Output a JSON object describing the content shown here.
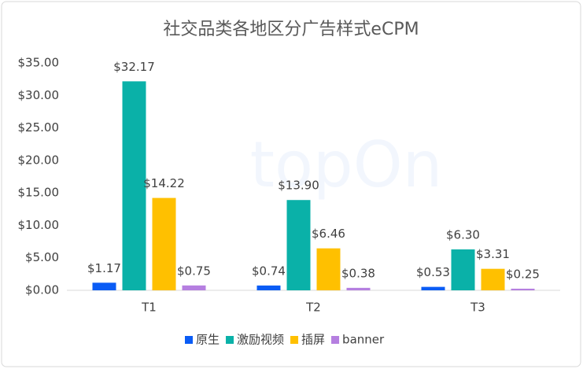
{
  "chart_data": {
    "type": "bar",
    "title": "社交品类各地区分广告样式eCPM",
    "watermark": "topOn",
    "categories": [
      "T1",
      "T2",
      "T3"
    ],
    "series": [
      {
        "name": "原生",
        "color": "#0a5cf5",
        "values": [
          1.17,
          0.74,
          0.53
        ],
        "value_labels": [
          "$1.17",
          "$0.74",
          "$0.53"
        ]
      },
      {
        "name": "激励视频",
        "color": "#0ab1a8",
        "values": [
          32.17,
          13.9,
          6.3
        ],
        "value_labels": [
          "$32.17",
          "$13.90",
          "$6.30"
        ]
      },
      {
        "name": "插屏",
        "color": "#ffc000",
        "values": [
          14.22,
          6.46,
          3.31
        ],
        "value_labels": [
          "$14.22",
          "$6.46",
          "$3.31"
        ]
      },
      {
        "name": "banner",
        "color": "#b57fe0",
        "values": [
          0.75,
          0.38,
          0.25
        ],
        "value_labels": [
          "$0.75",
          "$0.38",
          "$0.25"
        ]
      }
    ],
    "ylim": [
      0,
      35
    ],
    "yticks": [
      {
        "value": 0,
        "label": "$0.00"
      },
      {
        "value": 5,
        "label": "$5.00"
      },
      {
        "value": 10,
        "label": "$10.00"
      },
      {
        "value": 15,
        "label": "$15.00"
      },
      {
        "value": 20,
        "label": "$20.00"
      },
      {
        "value": 25,
        "label": "$25.00"
      },
      {
        "value": 30,
        "label": "$30.00"
      },
      {
        "value": 35,
        "label": "$35.00"
      }
    ],
    "grid": false,
    "legend": "bottom"
  }
}
